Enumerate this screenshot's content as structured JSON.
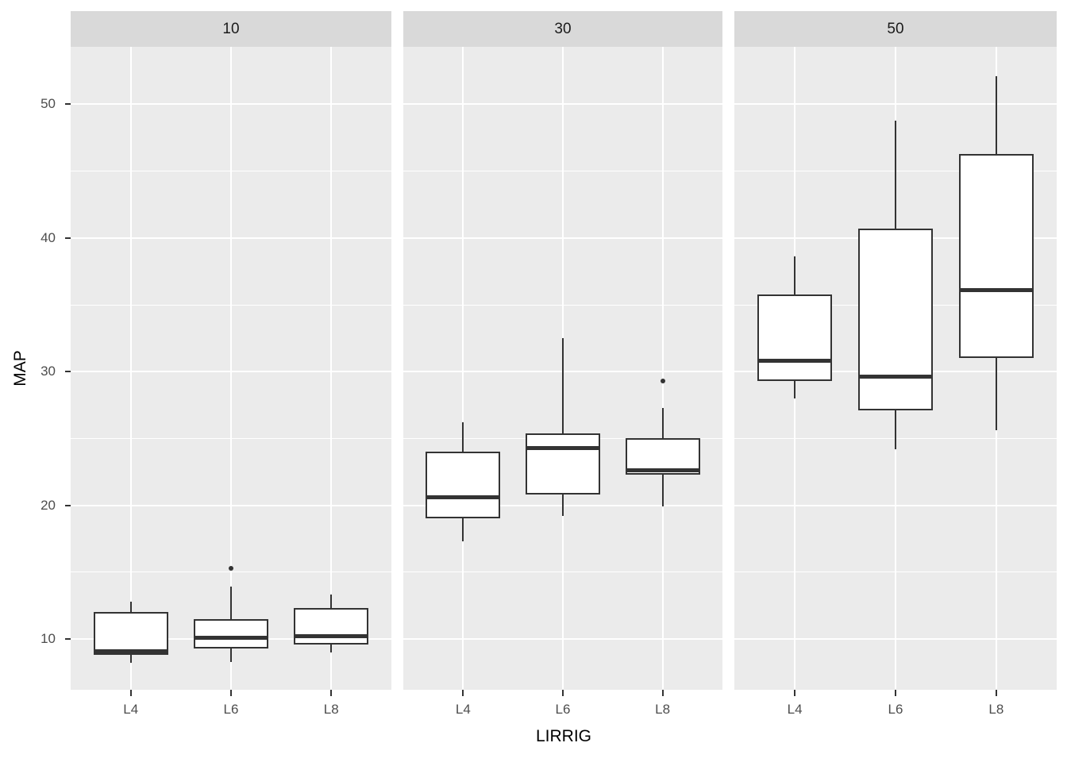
{
  "chart_data": {
    "type": "boxplot",
    "title": "",
    "xlabel": "LIRRIG",
    "ylabel": "MAP",
    "categories": [
      "L4",
      "L6",
      "L8"
    ],
    "facet_labels": [
      "10",
      "30",
      "50"
    ],
    "yticks": [
      10,
      20,
      30,
      40,
      50
    ],
    "yticks_minor": [
      15,
      25,
      35,
      45
    ],
    "ylim": [
      6.2,
      54.3
    ],
    "grid": "on",
    "legend": "none",
    "facets": [
      {
        "label": "10",
        "boxes": [
          {
            "category": "L4",
            "whisker_low": 8.2,
            "q1": 8.8,
            "median": 9.1,
            "q3": 12.0,
            "whisker_high": 12.8,
            "outliers": []
          },
          {
            "category": "L6",
            "whisker_low": 8.3,
            "q1": 9.3,
            "median": 10.1,
            "q3": 11.5,
            "whisker_high": 13.9,
            "outliers": [
              15.3
            ]
          },
          {
            "category": "L8",
            "whisker_low": 9.0,
            "q1": 9.6,
            "median": 10.2,
            "q3": 12.3,
            "whisker_high": 13.3,
            "outliers": []
          }
        ]
      },
      {
        "label": "30",
        "boxes": [
          {
            "category": "L4",
            "whisker_low": 17.3,
            "q1": 19.0,
            "median": 20.6,
            "q3": 24.0,
            "whisker_high": 26.2,
            "outliers": []
          },
          {
            "category": "L6",
            "whisker_low": 19.2,
            "q1": 20.8,
            "median": 24.3,
            "q3": 25.4,
            "whisker_high": 32.5,
            "outliers": []
          },
          {
            "category": "L8",
            "whisker_low": 19.9,
            "q1": 22.3,
            "median": 22.6,
            "q3": 25.0,
            "whisker_high": 27.3,
            "outliers": [
              29.3
            ]
          }
        ]
      },
      {
        "label": "50",
        "boxes": [
          {
            "category": "L4",
            "whisker_low": 28.0,
            "q1": 29.3,
            "median": 30.8,
            "q3": 35.8,
            "whisker_high": 38.6,
            "outliers": []
          },
          {
            "category": "L6",
            "whisker_low": 24.2,
            "q1": 27.1,
            "median": 29.6,
            "q3": 40.7,
            "whisker_high": 48.8,
            "outliers": []
          },
          {
            "category": "L8",
            "whisker_low": 25.6,
            "q1": 31.0,
            "median": 36.1,
            "q3": 46.3,
            "whisker_high": 52.1,
            "outliers": []
          }
        ]
      }
    ],
    "colors": {
      "panel_bg": "#EBEBEB",
      "strip_bg": "#D9D9D9",
      "grid": "#FFFFFF",
      "box_border": "#333333",
      "box_fill": "#FFFFFF",
      "tick_label": "#4D4D4D",
      "axis_title": "#000000"
    }
  }
}
